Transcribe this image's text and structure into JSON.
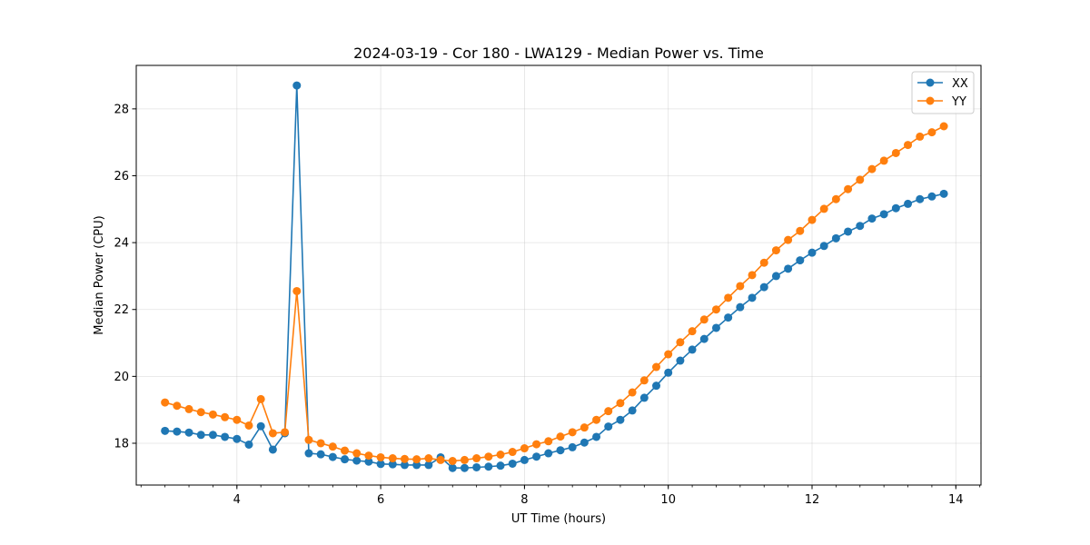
{
  "chart_data": {
    "type": "line",
    "title": "2024-03-19 - Cor 180 - LWA129 - Median Power vs. Time",
    "xlabel": "UT Time (hours)",
    "ylabel": "Median Power (CPU)",
    "xlim": [
      2.6,
      14.35
    ],
    "ylim": [
      16.75,
      29.3
    ],
    "xticks": [
      4,
      6,
      8,
      10,
      12,
      14
    ],
    "xtick_labels": [
      "4",
      "6",
      "8",
      "10",
      "12",
      "14"
    ],
    "xminor_step": 0.3333333,
    "yticks": [
      18,
      20,
      22,
      24,
      26,
      28
    ],
    "ytick_labels": [
      "18",
      "20",
      "22",
      "24",
      "26",
      "28"
    ],
    "grid": true,
    "legend_position": "top-right",
    "x": [
      3.0,
      3.1667,
      3.3333,
      3.5,
      3.6667,
      3.8333,
      4.0,
      4.1667,
      4.3333,
      4.5,
      4.6667,
      4.8333,
      5.0,
      5.1667,
      5.3333,
      5.5,
      5.6667,
      5.8333,
      6.0,
      6.1667,
      6.3333,
      6.5,
      6.6667,
      6.8333,
      7.0,
      7.1667,
      7.3333,
      7.5,
      7.6667,
      7.8333,
      8.0,
      8.1667,
      8.3333,
      8.5,
      8.6667,
      8.8333,
      9.0,
      9.1667,
      9.3333,
      9.5,
      9.6667,
      9.8333,
      10.0,
      10.1667,
      10.3333,
      10.5,
      10.6667,
      10.8333,
      11.0,
      11.1667,
      11.3333,
      11.5,
      11.6667,
      11.8333,
      12.0,
      12.1667,
      12.3333,
      12.5,
      12.6667,
      12.8333,
      13.0,
      13.1667,
      13.3333,
      13.5,
      13.6667,
      13.8333
    ],
    "series": [
      {
        "name": "XX",
        "color": "#1f77b4",
        "values": [
          18.37,
          18.35,
          18.32,
          18.25,
          18.25,
          18.19,
          18.13,
          17.96,
          18.51,
          17.81,
          18.3,
          28.7,
          17.7,
          17.67,
          17.59,
          17.52,
          17.48,
          17.45,
          17.38,
          17.37,
          17.35,
          17.35,
          17.35,
          17.58,
          17.26,
          17.26,
          17.28,
          17.3,
          17.33,
          17.39,
          17.5,
          17.6,
          17.7,
          17.79,
          17.88,
          18.02,
          18.19,
          18.5,
          18.7,
          18.98,
          19.36,
          19.72,
          20.11,
          20.47,
          20.8,
          21.12,
          21.45,
          21.76,
          22.07,
          22.35,
          22.67,
          23.0,
          23.22,
          23.47,
          23.7,
          23.9,
          24.13,
          24.33,
          24.5,
          24.72,
          24.85,
          25.03,
          25.16,
          25.3,
          25.38,
          25.46
        ]
      },
      {
        "name": "YY",
        "color": "#ff7f0e",
        "values": [
          19.22,
          19.12,
          19.02,
          18.93,
          18.86,
          18.78,
          18.7,
          18.53,
          19.32,
          18.3,
          18.33,
          22.55,
          18.1,
          18.0,
          17.9,
          17.78,
          17.7,
          17.63,
          17.58,
          17.55,
          17.53,
          17.52,
          17.55,
          17.5,
          17.47,
          17.5,
          17.55,
          17.6,
          17.66,
          17.74,
          17.85,
          17.97,
          18.06,
          18.2,
          18.33,
          18.47,
          18.7,
          18.96,
          19.2,
          19.52,
          19.88,
          20.28,
          20.66,
          21.02,
          21.35,
          21.7,
          22.0,
          22.35,
          22.7,
          23.03,
          23.4,
          23.77,
          24.08,
          24.35,
          24.68,
          25.01,
          25.3,
          25.6,
          25.88,
          26.2,
          26.45,
          26.68,
          26.92,
          27.17,
          27.3,
          27.48
        ]
      }
    ]
  }
}
